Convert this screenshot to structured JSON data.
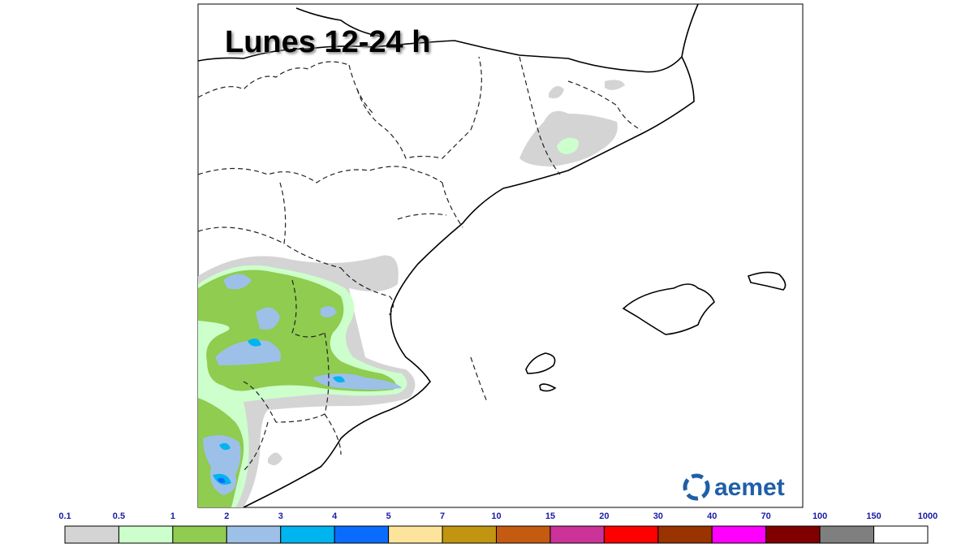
{
  "title": "Lunes 12-24 h",
  "logo": "aemet",
  "legend": {
    "levels": [
      0.1,
      0.5,
      1,
      2,
      3,
      4,
      5,
      7,
      10,
      15,
      20,
      30,
      40,
      70,
      100,
      150,
      1000
    ],
    "colors": [
      "#d4d4d4",
      "#ccffcc",
      "#8fcc4f",
      "#9dc0e8",
      "#00b4f0",
      "#0a6cff",
      "#fde49c",
      "#c19510",
      "#c55a11",
      "#cc3399",
      "#ff0000",
      "#993300",
      "#ff00ff",
      "#800000",
      "#7f7f7f",
      "#ffffff"
    ]
  }
}
